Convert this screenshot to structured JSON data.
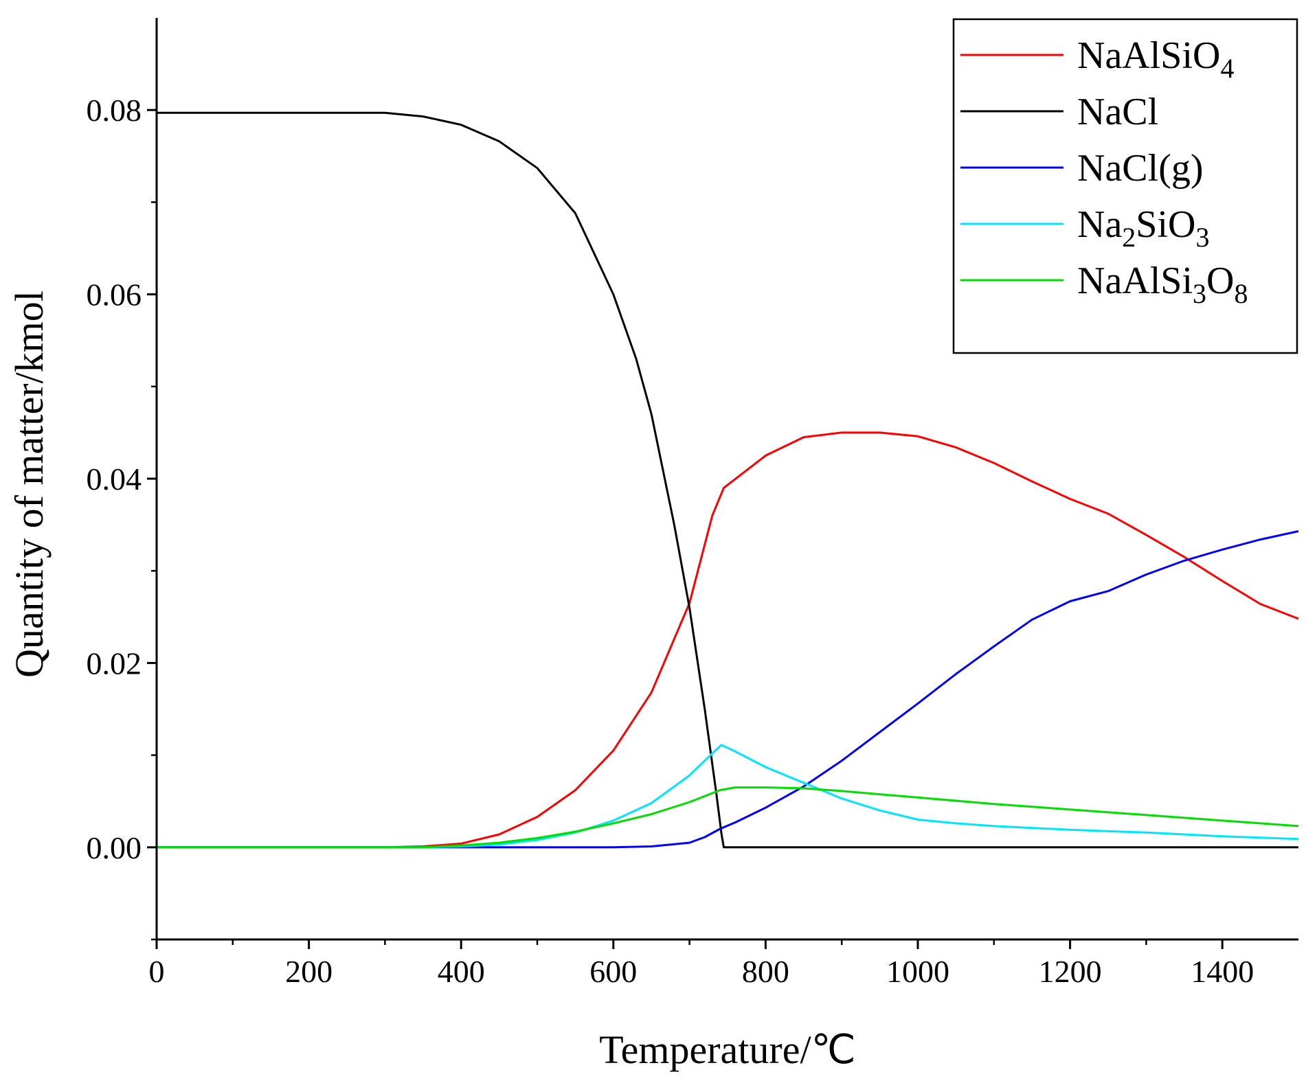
{
  "chart_data": {
    "type": "line",
    "title": "",
    "xlabel": "Temperature/℃",
    "ylabel": "Quantity of matter/kmol",
    "xlim": [
      0,
      1500
    ],
    "ylim": [
      -0.01,
      0.09
    ],
    "xticks": [
      0,
      200,
      400,
      600,
      800,
      1000,
      1200,
      1400
    ],
    "xtick_labels": [
      "0",
      "200",
      "400",
      "600",
      "800",
      "1000",
      "1200",
      "1400"
    ],
    "yticks": [
      0,
      0.02,
      0.04,
      0.06,
      0.08
    ],
    "ytick_labels": [
      "0.00",
      "0.02",
      "0.04",
      "0.06",
      "0.08"
    ],
    "grid": false,
    "legend_position": "top-right",
    "series": [
      {
        "name": "NaAlSiO4",
        "label_base": "NaAlSiO",
        "label_sub": "4",
        "label_tail": "",
        "label_sub2": "",
        "color": "#ff0000",
        "x": [
          0,
          300,
          350,
          400,
          450,
          500,
          550,
          600,
          650,
          700,
          730,
          745,
          800,
          850,
          900,
          950,
          1000,
          1050,
          1100,
          1150,
          1200,
          1250,
          1300,
          1350,
          1400,
          1450,
          1500
        ],
        "y": [
          0,
          0,
          0.0001,
          0.0004,
          0.0014,
          0.0033,
          0.0062,
          0.0105,
          0.0168,
          0.0265,
          0.036,
          0.039,
          0.0425,
          0.0445,
          0.045,
          0.045,
          0.0446,
          0.0434,
          0.0417,
          0.0397,
          0.0378,
          0.0362,
          0.0339,
          0.0315,
          0.0289,
          0.0264,
          0.0248
        ]
      },
      {
        "name": "NaCl",
        "label_base": "NaCl",
        "label_sub": "",
        "label_tail": "",
        "label_sub2": "",
        "color": "#000000",
        "x": [
          0,
          300,
          350,
          400,
          450,
          500,
          550,
          600,
          630,
          650,
          680,
          700,
          720,
          735,
          742,
          745,
          800,
          900,
          1000,
          1100,
          1200,
          1300,
          1400,
          1500
        ],
        "y": [
          0.0797,
          0.0797,
          0.0793,
          0.0784,
          0.0766,
          0.0737,
          0.0688,
          0.06,
          0.053,
          0.047,
          0.035,
          0.026,
          0.015,
          0.006,
          0.0015,
          0,
          0,
          0,
          0,
          0,
          0,
          0,
          0,
          0
        ]
      },
      {
        "name": "NaCl(g)",
        "label_base": "NaCl(g)",
        "label_sub": "",
        "label_tail": "",
        "label_sub2": "",
        "color": "#0000ff",
        "x": [
          0,
          600,
          650,
          700,
          720,
          740,
          760,
          800,
          850,
          900,
          950,
          1000,
          1050,
          1100,
          1150,
          1200,
          1250,
          1300,
          1350,
          1400,
          1450,
          1500
        ],
        "y": [
          0,
          0,
          0.0001,
          0.0005,
          0.0011,
          0.002,
          0.0027,
          0.0043,
          0.0066,
          0.0094,
          0.0125,
          0.0156,
          0.0188,
          0.0218,
          0.0247,
          0.0267,
          0.0278,
          0.0296,
          0.0311,
          0.0323,
          0.0334,
          0.0343
        ]
      },
      {
        "name": "Na2SiO3",
        "label_base": "Na",
        "label_sub": "2",
        "label_tail": "SiO",
        "label_sub2": "3",
        "color": "#00e5ff",
        "x": [
          0,
          350,
          400,
          450,
          500,
          550,
          600,
          650,
          700,
          730,
          742,
          760,
          800,
          850,
          900,
          950,
          1000,
          1050,
          1100,
          1200,
          1300,
          1400,
          1500
        ],
        "y": [
          0,
          0,
          0.0001,
          0.0003,
          0.0008,
          0.0016,
          0.0029,
          0.0048,
          0.0078,
          0.0102,
          0.0111,
          0.0104,
          0.0087,
          0.007,
          0.0053,
          0.004,
          0.003,
          0.0026,
          0.0023,
          0.0019,
          0.0016,
          0.0012,
          0.0009
        ]
      },
      {
        "name": "NaAlSi3O8",
        "label_base": "NaAlSi",
        "label_sub": "3",
        "label_tail": "O",
        "label_sub2": "8",
        "color": "#00dd00",
        "x": [
          0,
          350,
          400,
          450,
          500,
          550,
          600,
          650,
          700,
          740,
          760,
          800,
          850,
          900,
          1000,
          1100,
          1200,
          1300,
          1400,
          1500
        ],
        "y": [
          0,
          0,
          0.0002,
          0.0005,
          0.001,
          0.0017,
          0.0026,
          0.0036,
          0.0049,
          0.0062,
          0.0065,
          0.0065,
          0.0064,
          0.0061,
          0.0054,
          0.0047,
          0.0041,
          0.0035,
          0.0029,
          0.0023
        ]
      }
    ]
  }
}
